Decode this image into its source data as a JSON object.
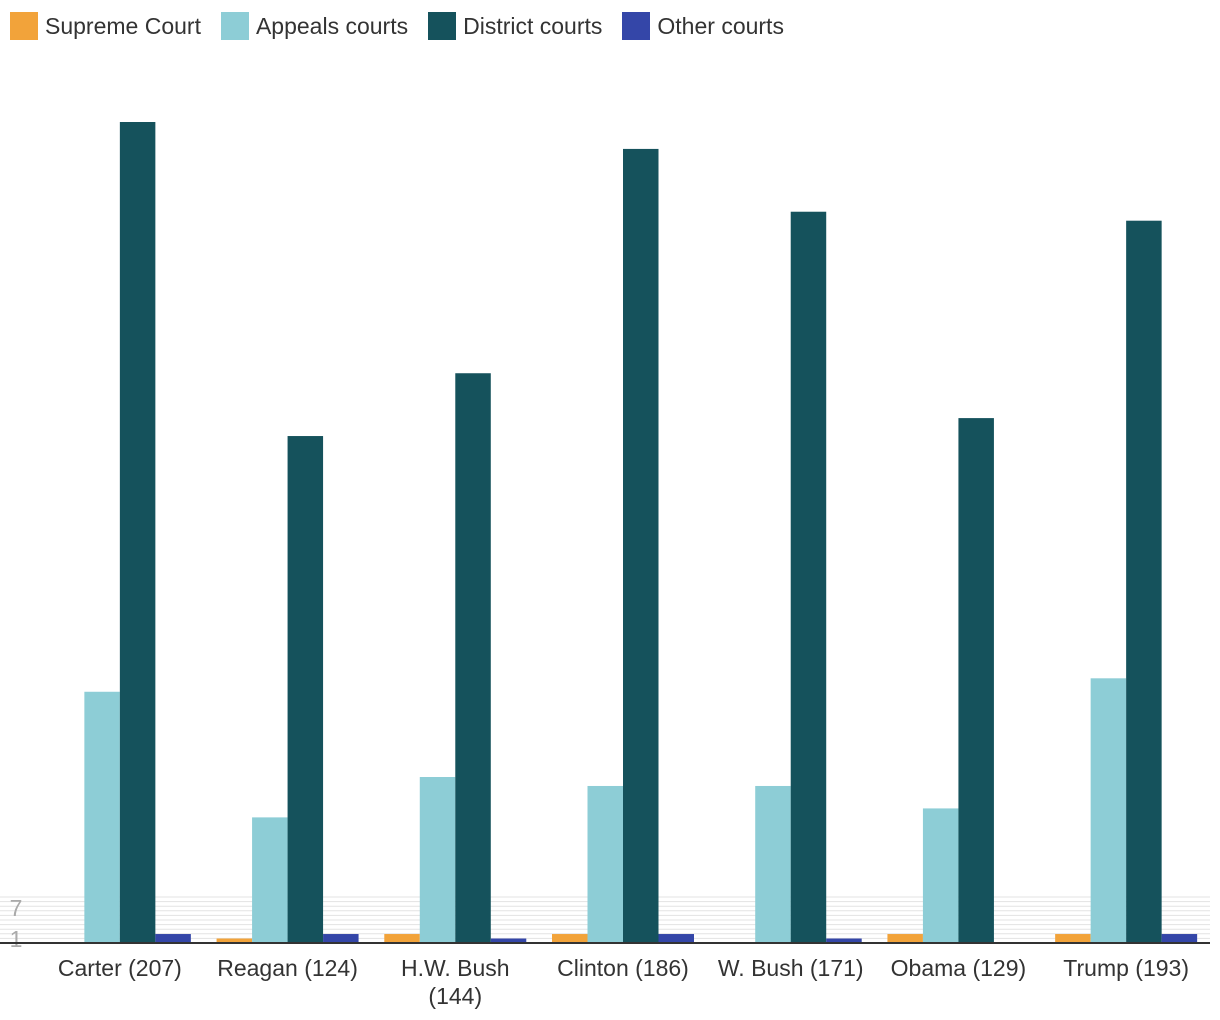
{
  "chart_data": {
    "type": "bar",
    "categories": [
      "Carter (207)",
      "Reagan (124)",
      "H.W. Bush (144)",
      "Clinton (186)",
      "W. Bush (171)",
      "Obama (129)",
      "Trump (193)"
    ],
    "series": [
      {
        "name": "Supreme Court",
        "color": "#f2a33a",
        "values": [
          0,
          1,
          2,
          2,
          0,
          2,
          2
        ]
      },
      {
        "name": "Appeals courts",
        "color": "#8dcdd6",
        "values": [
          56,
          28,
          37,
          35,
          35,
          30,
          59
        ]
      },
      {
        "name": "District courts",
        "color": "#15525c",
        "values": [
          183,
          113,
          127,
          177,
          163,
          117,
          161
        ]
      },
      {
        "name": "Other courts",
        "color": "#3446a8",
        "values": [
          2,
          2,
          1,
          2,
          1,
          0,
          2
        ]
      }
    ],
    "yticks": [
      1,
      7
    ],
    "title": "",
    "xlabel": "",
    "ylabel": "",
    "ylim": [
      0,
      183
    ],
    "grid": true,
    "legend_position": "top-left"
  }
}
